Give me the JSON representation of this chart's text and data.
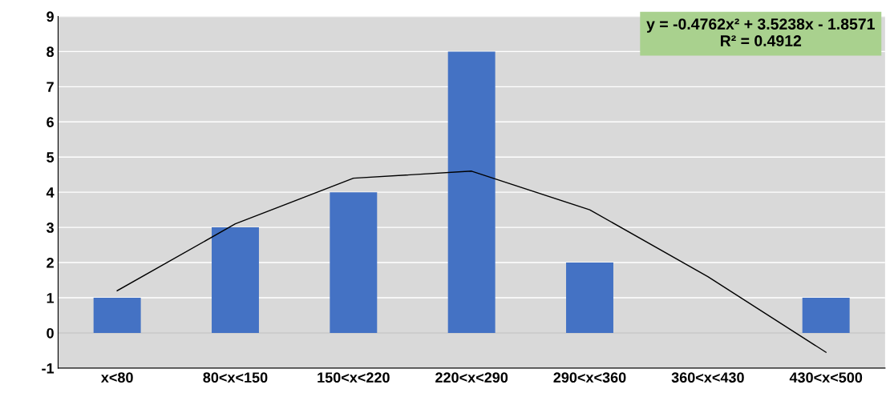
{
  "chart_data": {
    "type": "bar",
    "categories": [
      "x<80",
      "80<x<150",
      "150<x<220",
      "220<x<290",
      "290<x<360",
      "360<x<430",
      "430<x<500"
    ],
    "series": [
      {
        "color": "#4472c4",
        "values": [
          1,
          3,
          4,
          8,
          2,
          0,
          1
        ]
      },
      {
        "type": "line",
        "color": "#000000",
        "values": [
          1.2,
          3.1,
          4.4,
          4.6,
          3.5,
          1.6,
          -0.55
        ]
      }
    ],
    "ylim": [
      -1,
      9
    ],
    "yticks": [
      -1,
      0,
      1,
      2,
      3,
      4,
      5,
      6,
      7,
      8,
      9
    ],
    "grid": "y",
    "marker": "none",
    "line_style": "solid",
    "annotations": [
      "y = -0.4762x² + 3.5238x - 1.8571\nR² = 0.4912"
    ]
  }
}
